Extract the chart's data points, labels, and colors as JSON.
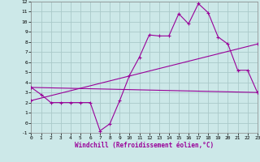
{
  "xlabel": "Windchill (Refroidissement éolien,°C)",
  "x": [
    0,
    1,
    2,
    3,
    4,
    5,
    6,
    7,
    8,
    9,
    10,
    11,
    12,
    13,
    14,
    15,
    16,
    17,
    18,
    19,
    20,
    21,
    22,
    23
  ],
  "line1": [
    3.5,
    2.8,
    2.0,
    2.0,
    2.0,
    2.0,
    2.0,
    -0.8,
    -0.1,
    2.2,
    4.7,
    6.5,
    8.7,
    8.6,
    8.6,
    10.8,
    9.8,
    11.8,
    10.9,
    8.5,
    7.8,
    5.2,
    5.2,
    3.0
  ],
  "line2_x": [
    0,
    23
  ],
  "line2_y": [
    3.5,
    3.0
  ],
  "line3_x": [
    0,
    23
  ],
  "line3_y": [
    2.2,
    7.8
  ],
  "line_color": "#990099",
  "bg_color": "#cce8e8",
  "grid_color": "#aacaca",
  "ylim": [
    -1,
    12
  ],
  "xlim": [
    0,
    23
  ],
  "yticks": [
    -1,
    0,
    1,
    2,
    3,
    4,
    5,
    6,
    7,
    8,
    9,
    10,
    11,
    12
  ],
  "xticks": [
    0,
    1,
    2,
    3,
    4,
    5,
    6,
    7,
    8,
    9,
    10,
    11,
    12,
    13,
    14,
    15,
    16,
    17,
    18,
    19,
    20,
    21,
    22,
    23
  ]
}
